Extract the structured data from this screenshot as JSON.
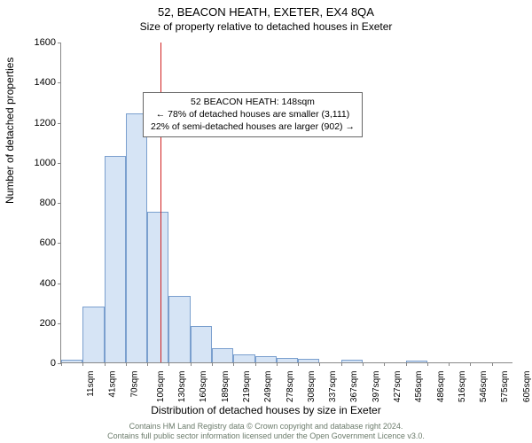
{
  "title_main": "52, BEACON HEATH, EXETER, EX4 8QA",
  "title_sub": "Size of property relative to detached houses in Exeter",
  "annotation": {
    "line1": "52 BEACON HEATH: 148sqm",
    "line2": "← 78% of detached houses are smaller (3,111)",
    "line3": "22% of semi-detached houses are larger (902) →"
  },
  "y_axis_label": "Number of detached properties",
  "x_axis_label": "Distribution of detached houses by size in Exeter",
  "footer_line1": "Contains HM Land Registry data © Crown copyright and database right 2024.",
  "footer_line2": "Contains full public sector information licensed under the Open Government Licence v3.0.",
  "chart": {
    "type": "histogram",
    "ylim": [
      0,
      1600
    ],
    "yticks": [
      0,
      200,
      400,
      600,
      800,
      1000,
      1200,
      1400,
      1600
    ],
    "x_categories": [
      "11sqm",
      "41sqm",
      "70sqm",
      "100sqm",
      "130sqm",
      "160sqm",
      "189sqm",
      "219sqm",
      "249sqm",
      "278sqm",
      "308sqm",
      "337sqm",
      "367sqm",
      "397sqm",
      "427sqm",
      "456sqm",
      "486sqm",
      "516sqm",
      "546sqm",
      "575sqm",
      "605sqm"
    ],
    "values": [
      15,
      280,
      1030,
      1240,
      750,
      330,
      180,
      70,
      40,
      30,
      20,
      18,
      0,
      12,
      0,
      0,
      8,
      0,
      0,
      0
    ],
    "bar_fill": "#d6e4f5",
    "bar_stroke": "#7a9fce",
    "bar_width_ratio": 1.0,
    "background_color": "#ffffff",
    "axis_color": "#888888",
    "tick_fontsize": 11,
    "vline_sqm": 148,
    "vline_color": "#d11f1f",
    "x_range_sqm": [
      11,
      635
    ]
  }
}
